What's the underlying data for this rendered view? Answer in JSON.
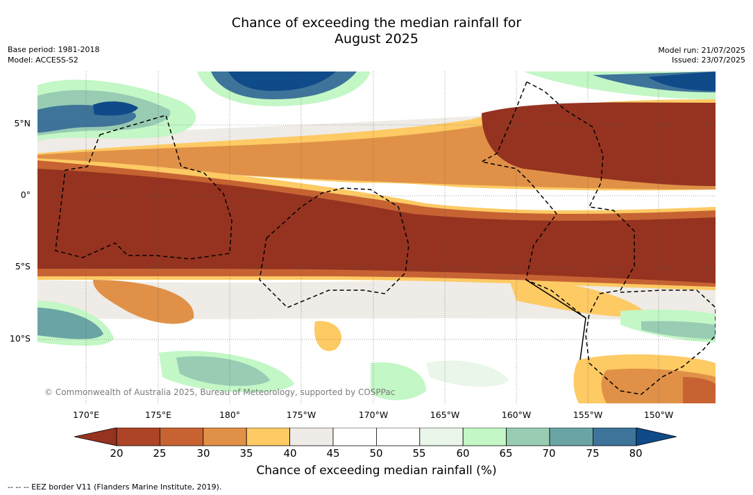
{
  "title": {
    "line1": "Chance of exceeding the median rainfall for",
    "line2": "August 2025"
  },
  "meta_left": {
    "base_period": "Base period: 1981-2018",
    "model": "Model: ACCESS-S2"
  },
  "meta_right": {
    "model_run": "Model run: 21/07/2025",
    "issued": "Issued: 23/07/2025"
  },
  "map": {
    "lat_labels": [
      "5°N",
      "0°",
      "5°S",
      "10°S"
    ],
    "lon_labels": [
      "170°E",
      "175°E",
      "180°",
      "175°W",
      "170°W",
      "165°W",
      "160°W",
      "155°W",
      "150°W"
    ],
    "copyright": "© Commonwealth of Australia 2025, Bureau of Meteorology, supported by COSPPac"
  },
  "colorbar": {
    "ticks": [
      "20",
      "25",
      "30",
      "35",
      "40",
      "45",
      "50",
      "55",
      "60",
      "65",
      "70",
      "75",
      "80"
    ],
    "colors": [
      "#953320",
      "#ad4427",
      "#c76333",
      "#e09147",
      "#fdca64",
      "#efebe6",
      "#ffffff",
      "#ffffff",
      "#e9f6e9",
      "#c3f7c6",
      "#98ccb3",
      "#6ba4a5",
      "#3e7499",
      "#0f4a89"
    ],
    "label": "Chance of exceeding median rainfall (%)"
  },
  "footer": "--  --  -- EEZ border V11 (Flanders Marine Institute, 2019)."
}
